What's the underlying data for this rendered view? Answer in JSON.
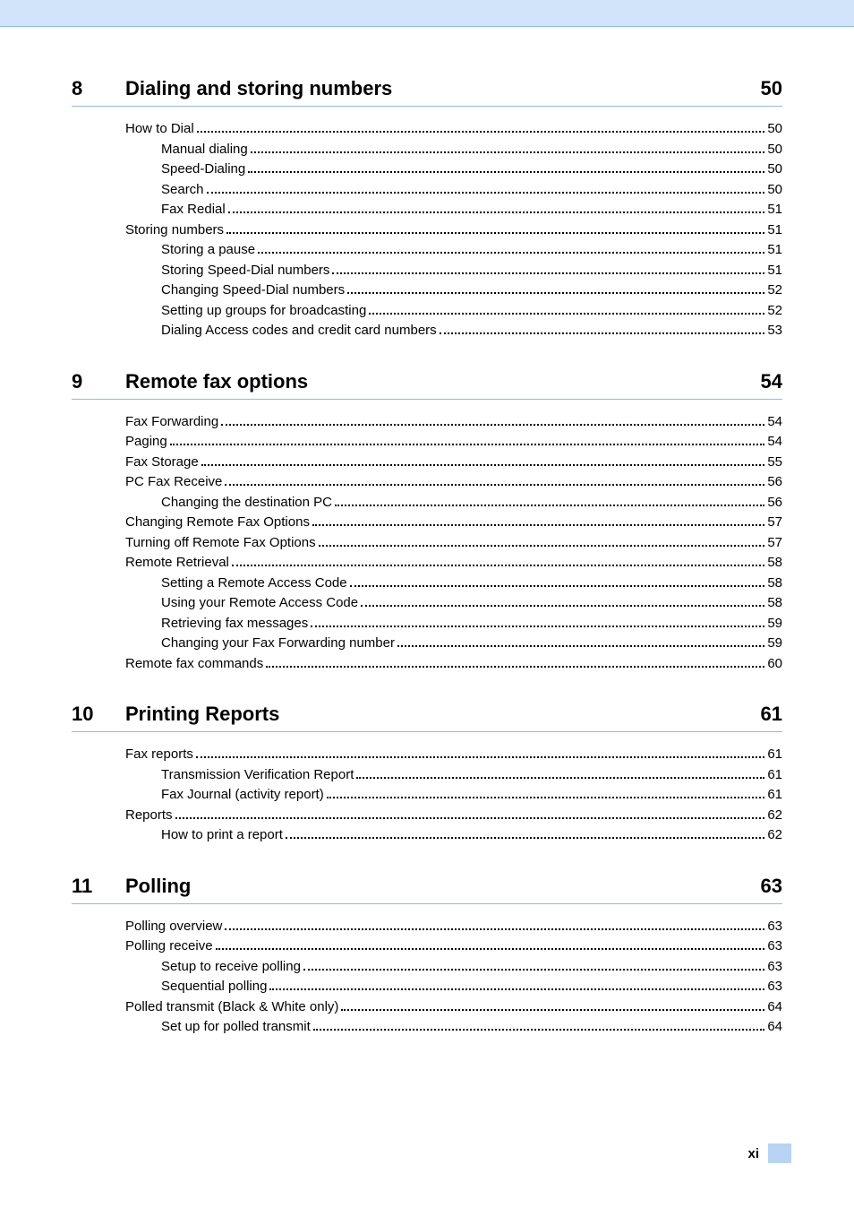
{
  "colors": {
    "header_bg": "#d1e4fa",
    "header_border": "#8eb8e8",
    "section_rule": "#94b9e4",
    "footer_tab": "#b8d4f5",
    "text": "#000000",
    "bg": "#ffffff"
  },
  "typography": {
    "section_font_size_pt": 16,
    "row_font_size_pt": 11,
    "font_family": "Arial"
  },
  "footer": {
    "page_label": "xi"
  },
  "sections": [
    {
      "number": "8",
      "title": "Dialing and storing numbers",
      "page": "50",
      "entries": [
        {
          "level": 0,
          "label": "How to Dial",
          "page": "50"
        },
        {
          "level": 1,
          "label": "Manual dialing",
          "page": "50"
        },
        {
          "level": 1,
          "label": "Speed-Dialing",
          "page": "50"
        },
        {
          "level": 1,
          "label": "Search",
          "page": "50"
        },
        {
          "level": 1,
          "label": "Fax Redial",
          "page": "51"
        },
        {
          "level": 0,
          "label": "Storing numbers",
          "page": "51"
        },
        {
          "level": 1,
          "label": "Storing a pause",
          "page": "51"
        },
        {
          "level": 1,
          "label": "Storing Speed-Dial numbers",
          "page": "51"
        },
        {
          "level": 1,
          "label": "Changing Speed-Dial numbers",
          "page": "52"
        },
        {
          "level": 1,
          "label": "Setting up groups for broadcasting",
          "page": "52"
        },
        {
          "level": 1,
          "label": "Dialing Access codes and credit card numbers",
          "page": "53"
        }
      ]
    },
    {
      "number": "9",
      "title": "Remote fax options",
      "page": "54",
      "entries": [
        {
          "level": 0,
          "label": "Fax Forwarding",
          "page": "54"
        },
        {
          "level": 0,
          "label": "Paging",
          "page": "54"
        },
        {
          "level": 0,
          "label": "Fax Storage",
          "page": "55"
        },
        {
          "level": 0,
          "label": "PC Fax Receive",
          "page": "56"
        },
        {
          "level": 1,
          "label": "Changing the destination PC",
          "page": "56"
        },
        {
          "level": 0,
          "label": "Changing Remote Fax Options",
          "page": "57"
        },
        {
          "level": 0,
          "label": "Turning off Remote Fax Options",
          "page": "57"
        },
        {
          "level": 0,
          "label": "Remote Retrieval",
          "page": "58"
        },
        {
          "level": 1,
          "label": "Setting a Remote Access Code",
          "page": "58"
        },
        {
          "level": 1,
          "label": "Using your Remote Access Code",
          "page": "58"
        },
        {
          "level": 1,
          "label": "Retrieving fax messages",
          "page": "59"
        },
        {
          "level": 1,
          "label": "Changing your Fax Forwarding number",
          "page": "59"
        },
        {
          "level": 0,
          "label": "Remote fax commands",
          "page": "60"
        }
      ]
    },
    {
      "number": "10",
      "title": "Printing Reports",
      "page": "61",
      "entries": [
        {
          "level": 0,
          "label": "Fax reports",
          "page": "61"
        },
        {
          "level": 1,
          "label": "Transmission Verification Report",
          "page": "61"
        },
        {
          "level": 1,
          "label": "Fax Journal (activity report)",
          "page": "61"
        },
        {
          "level": 0,
          "label": "Reports",
          "page": "62"
        },
        {
          "level": 1,
          "label": "How to print a report",
          "page": "62"
        }
      ]
    },
    {
      "number": "11",
      "title": "Polling",
      "page": "63",
      "entries": [
        {
          "level": 0,
          "label": "Polling overview",
          "page": "63"
        },
        {
          "level": 0,
          "label": "Polling receive",
          "page": "63"
        },
        {
          "level": 1,
          "label": "Setup to receive polling",
          "page": "63"
        },
        {
          "level": 1,
          "label": "Sequential polling",
          "page": "63"
        },
        {
          "level": 0,
          "label": "Polled transmit (Black & White only)",
          "page": "64"
        },
        {
          "level": 1,
          "label": "Set up for polled transmit",
          "page": "64"
        }
      ]
    }
  ]
}
